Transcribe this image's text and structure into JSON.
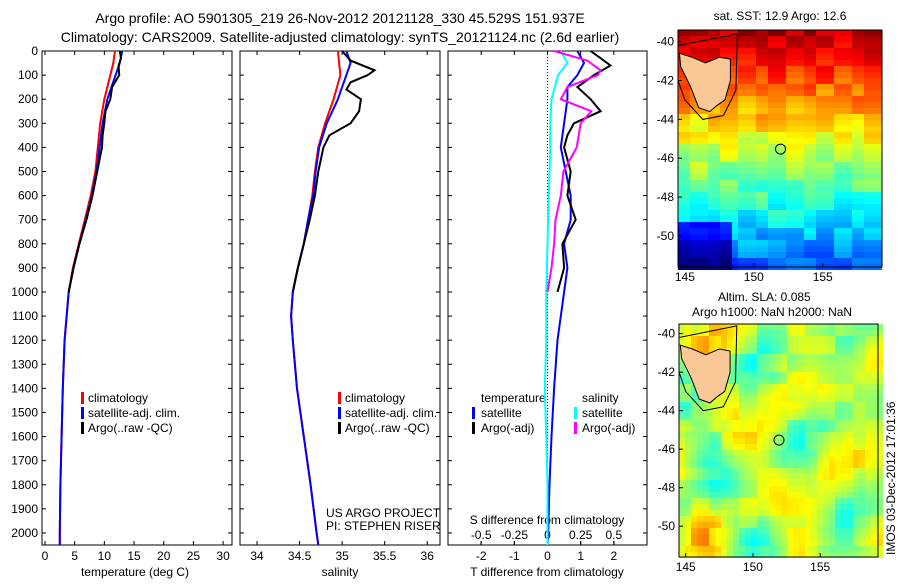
{
  "title": {
    "line1": "Argo profile: AO 5901305_219 26-Nov-2012 20121128_330 45.529S 151.937E",
    "line2": "Climatology: CARS2009. Satellite-adjusted climatology: synTS_20121124.nc (2.6d earlier)"
  },
  "colors": {
    "climatology": "#ff0000",
    "satellite": "#0000ff",
    "argo": "#000000",
    "sal_satellite": "#00ffff",
    "sal_argo": "#ff00ff"
  },
  "chart_data": [
    {
      "type": "line",
      "id": "temperature",
      "xlabel": "temperature (deg C)",
      "xlim": [
        -0.5,
        31.5
      ],
      "xticks": [
        0,
        5,
        10,
        15,
        20,
        25,
        30
      ],
      "ylim": [
        0,
        2050
      ],
      "yticks": [
        0,
        100,
        200,
        300,
        400,
        500,
        600,
        700,
        800,
        900,
        1000,
        1100,
        1200,
        1300,
        1400,
        1500,
        1600,
        1700,
        1800,
        1900,
        2000
      ],
      "legend": [
        "climatology",
        "satellite-adj. clim.",
        "Argo(..raw -QC)"
      ],
      "series": [
        {
          "name": "climatology",
          "color": "#ff0000",
          "depth": [
            0,
            50,
            100,
            200,
            300,
            400,
            500,
            600,
            700,
            800,
            900,
            1000,
            1200,
            1400,
            1600,
            1800,
            2000,
            2050
          ],
          "values": [
            11.8,
            11.5,
            11.0,
            10.0,
            9.3,
            8.9,
            8.5,
            7.7,
            6.7,
            5.7,
            4.7,
            4.0,
            3.3,
            3.0,
            2.8,
            2.6,
            2.5,
            2.5
          ]
        },
        {
          "name": "satellite-adj. clim.",
          "color": "#0000ff",
          "depth": [
            0,
            50,
            100,
            200,
            300,
            400,
            500,
            600,
            700,
            800,
            900,
            1000,
            1200,
            1400,
            1600,
            1800,
            2000,
            2050
          ],
          "values": [
            13.0,
            12.6,
            11.9,
            10.5,
            9.7,
            9.2,
            8.7,
            7.9,
            6.9,
            5.8,
            4.8,
            4.0,
            3.3,
            3.0,
            2.8,
            2.6,
            2.5,
            2.5
          ]
        },
        {
          "name": "Argo(..raw -QC)",
          "color": "#000000",
          "depth": [
            0,
            30,
            60,
            100,
            150,
            200,
            250,
            300,
            350,
            400,
            500,
            600,
            700,
            800,
            900,
            1000
          ],
          "values": [
            12.6,
            12.8,
            12.4,
            12.5,
            11.3,
            11.0,
            10.2,
            10.0,
            9.7,
            9.6,
            8.8,
            8.0,
            7.0,
            5.8,
            4.8,
            4.0
          ]
        }
      ]
    },
    {
      "type": "line",
      "id": "salinity",
      "xlabel": "salinity",
      "xlim": [
        33.8,
        36.15
      ],
      "xticks": [
        34,
        34.5,
        35,
        35.5,
        36
      ],
      "ylim": [
        0,
        2050
      ],
      "legend": [
        "climatology",
        "satellite-adj. clim.",
        "Argo(..raw -QC)"
      ],
      "annotation": [
        "US ARGO PROJECT",
        "PI: STEPHEN RISER"
      ],
      "series": [
        {
          "name": "climatology",
          "color": "#ff0000",
          "depth": [
            0,
            100,
            200,
            300,
            400,
            500,
            600,
            700,
            800,
            900,
            1000,
            1100,
            1200,
            1400,
            1600,
            1800,
            2000,
            2050
          ],
          "values": [
            34.95,
            34.98,
            34.9,
            34.8,
            34.72,
            34.68,
            34.65,
            34.6,
            34.55,
            34.48,
            34.42,
            34.4,
            34.42,
            34.47,
            34.55,
            34.63,
            34.7,
            34.72
          ]
        },
        {
          "name": "satellite-adj. clim.",
          "color": "#0000ff",
          "depth": [
            0,
            50,
            100,
            150,
            200,
            300,
            400,
            500,
            600,
            700,
            800,
            900,
            1000,
            1100,
            1200,
            1400,
            1600,
            1800,
            2000,
            2050
          ],
          "values": [
            35.05,
            35.1,
            35.05,
            35.0,
            34.95,
            34.82,
            34.73,
            34.69,
            34.66,
            34.6,
            34.55,
            34.48,
            34.42,
            34.4,
            34.42,
            34.47,
            34.55,
            34.63,
            34.7,
            34.72
          ]
        },
        {
          "name": "Argo(..raw -QC)",
          "color": "#000000",
          "depth": [
            0,
            40,
            80,
            100,
            130,
            160,
            200,
            250,
            300,
            350,
            400,
            500,
            600,
            700,
            800,
            900,
            950,
            1000
          ],
          "values": [
            35.0,
            35.1,
            35.38,
            35.3,
            35.1,
            35.05,
            35.22,
            35.2,
            35.1,
            34.85,
            34.78,
            34.72,
            34.68,
            34.62,
            34.55,
            34.48,
            34.45,
            34.42
          ]
        }
      ]
    },
    {
      "type": "line",
      "id": "difference",
      "xlabel": "T difference from climatology",
      "xlabel_top": "S difference from climatology",
      "xlim": [
        -3,
        3
      ],
      "xticks": [
        -2,
        -1,
        0,
        1,
        2
      ],
      "xlim_top": [
        -0.75,
        0.75
      ],
      "xticks_top": [
        -0.5,
        -0.25,
        0,
        0.25,
        0.5
      ],
      "xticklabels_top": [
        "-0.5",
        "-0.25",
        "0",
        "0.25",
        "0.5"
      ],
      "ylim": [
        0,
        2050
      ],
      "legend": {
        "temperature_header": "temperature",
        "salinity_header": "salinity",
        "items": [
          "satellite",
          "Argo(-adj)",
          "satellite",
          "Argo(-adj)"
        ]
      },
      "series": [
        {
          "name": "T satellite",
          "axis": "T",
          "color": "#0000ff",
          "depth": [
            0,
            50,
            100,
            150,
            200,
            300,
            400,
            500,
            600,
            700,
            800,
            900,
            1000,
            1200,
            1400,
            1600,
            1800,
            2000,
            2050
          ],
          "values": [
            0.9,
            1.1,
            0.9,
            0.6,
            0.6,
            0.5,
            0.4,
            0.55,
            0.7,
            0.7,
            0.5,
            0.6,
            0.5,
            0.3,
            0.2,
            0.12,
            0.06,
            0.02,
            0.0
          ]
        },
        {
          "name": "T Argo(-adj)",
          "axis": "T",
          "color": "#000000",
          "depth": [
            0,
            30,
            60,
            100,
            150,
            200,
            250,
            300,
            350,
            400,
            500,
            600,
            700,
            800,
            900,
            1000
          ],
          "values": [
            1.3,
            1.6,
            1.9,
            1.4,
            0.9,
            1.3,
            1.6,
            0.8,
            0.6,
            0.5,
            0.7,
            0.6,
            0.85,
            0.45,
            0.5,
            0.3
          ]
        },
        {
          "name": "S satellite",
          "axis": "S",
          "color": "#00ffff",
          "depth": [
            0,
            50,
            100,
            200,
            300,
            400,
            600,
            800,
            1000,
            1200,
            1400,
            1600,
            1800,
            2000,
            2050
          ],
          "values": [
            0.1,
            0.15,
            0.08,
            0.03,
            0.02,
            0.02,
            0.01,
            0.0,
            -0.01,
            -0.01,
            -0.02,
            -0.01,
            0.0,
            0.0,
            0.0
          ]
        },
        {
          "name": "S Argo(-adj)",
          "axis": "S",
          "color": "#ff00ff",
          "depth": [
            0,
            40,
            80,
            100,
            150,
            200,
            250,
            300,
            400,
            500,
            600,
            700,
            800,
            900,
            1000
          ],
          "values": [
            0.05,
            0.3,
            0.4,
            0.38,
            0.15,
            0.1,
            0.33,
            0.25,
            0.22,
            0.12,
            0.1,
            0.06,
            0.05,
            0.03,
            0.0
          ]
        }
      ]
    }
  ],
  "maps": [
    {
      "id": "sst",
      "title": "sat. SST: 12.9 Argo: 12.6",
      "xticks": [
        145,
        150,
        155
      ],
      "yticks": [
        -40,
        -42,
        -44,
        -46,
        -48,
        -50
      ],
      "lon_range": [
        144.5,
        159.3
      ],
      "lat_range": [
        -51.6,
        -39.4
      ],
      "argo_position": {
        "lon": 151.937,
        "lat": -45.529
      }
    },
    {
      "id": "sla",
      "title": "Altim. SLA: 0.085",
      "subtitle": "Argo h1000: NaN h2000: NaN",
      "xticks": [
        145,
        150,
        155
      ],
      "yticks": [
        -40,
        -42,
        -44,
        -46,
        -48,
        -50
      ],
      "lon_range": [
        144.5,
        159.3
      ],
      "lat_range": [
        -51.6,
        -39.5
      ],
      "argo_position": {
        "lon": 151.937,
        "lat": -45.529
      }
    }
  ],
  "stamp": "IMOS 03-Dec-2012 17:01:36"
}
